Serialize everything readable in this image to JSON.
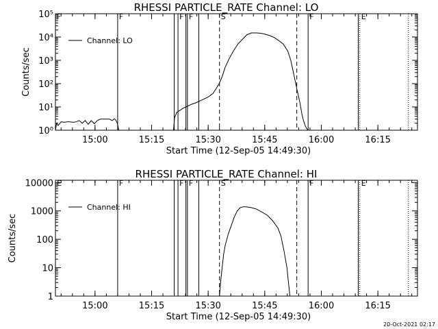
{
  "chart_data": [
    {
      "type": "line",
      "title": "RHESSI PARTICLE_RATE Channel: LO",
      "xlabel": "Start Time (12-Sep-05 14:49:30)",
      "ylabel": "Counts/sec",
      "scale": "log",
      "ylim": [
        1,
        100000
      ],
      "xlim": [
        "14:49:30",
        "16:25:30"
      ],
      "y_ticks": [
        {
          "value": 1,
          "label": "10⁰"
        },
        {
          "value": 10,
          "label": "10¹"
        },
        {
          "value": 100,
          "label": "10²"
        },
        {
          "value": 1000,
          "label": "10³"
        },
        {
          "value": 10000,
          "label": "10⁴"
        },
        {
          "value": 100000,
          "label": "10⁵"
        }
      ],
      "x_ticks": [
        "15:00",
        "15:15",
        "15:30",
        "15:45",
        "16:00",
        "16:15"
      ],
      "legend": {
        "label": "Channel: LO",
        "placement": "top-left"
      },
      "series": [
        {
          "x": [
            "14:49:30",
            "14:49:48",
            "14:50:12",
            "14:51:00",
            "14:51:48",
            "14:52:36",
            "14:53:24",
            "14:54:12",
            "14:55:00",
            "14:55:48",
            "14:56:36",
            "14:57:24",
            "14:58:12",
            "14:59:00",
            "14:59:48",
            "15:00:36",
            "15:01:24",
            "15:02:12",
            "15:03:00",
            "15:03:48",
            "15:04:36",
            "15:05:06",
            "15:05:30",
            "15:05:54",
            "15:06:18",
            "15:20:48",
            "15:21:06",
            "15:21:42",
            "15:22:30",
            "15:23:18",
            "15:24:06",
            "15:24:54",
            "15:25:42",
            "15:26:30",
            "15:27:18",
            "15:28:06",
            "15:28:54",
            "15:29:42",
            "15:30:30",
            "15:31:18",
            "15:32:06",
            "15:32:54",
            "15:33:42",
            "15:34:30",
            "15:35:30",
            "15:36:42",
            "15:37:54",
            "15:39:06",
            "15:40:18",
            "15:41:30",
            "15:42:42",
            "15:43:54",
            "15:45:06",
            "15:46:18",
            "15:47:30",
            "15:48:42",
            "15:49:54",
            "15:51:06",
            "15:51:54",
            "15:52:42",
            "15:53:30",
            "15:54:18",
            "15:54:54",
            "15:55:18",
            "15:55:42",
            "15:56:06",
            "15:56:30"
          ],
          "y": [
            1.0,
            2.0,
            1.6,
            2.3,
            2.2,
            2.3,
            2.3,
            2.2,
            2.3,
            2.6,
            2.0,
            2.6,
            1.8,
            2.6,
            1.9,
            2.6,
            3.0,
            3.0,
            3.0,
            3.0,
            2.6,
            3.1,
            2.7,
            2.0,
            1.0,
            1.0,
            3.5,
            5.8,
            7.1,
            8.7,
            10.0,
            11.5,
            13.2,
            14.5,
            16.6,
            19.1,
            21.9,
            25.1,
            30.2,
            38.0,
            60.3,
            100,
            200,
            500,
            1120,
            2510,
            5010,
            7940,
            12600,
            15000,
            15000,
            14500,
            13200,
            11500,
            9550,
            7080,
            5010,
            2510,
            1000,
            250,
            60.3,
            15.8,
            4.5,
            2.5,
            1.6,
            1.2,
            1.0
          ]
        }
      ],
      "markers": [
        {
          "time": "14:49:30",
          "style": "dotted",
          "label": "F"
        },
        {
          "time": "15:06:00",
          "style": "solid",
          "label": "F"
        },
        {
          "time": "15:21:00",
          "style": "solid",
          "label": ""
        },
        {
          "time": "15:22:00",
          "style": "solid",
          "label": "F"
        },
        {
          "time": "15:24:06",
          "style": "solid",
          "label": ""
        },
        {
          "time": "15:24:30",
          "style": "solid",
          "label": "F"
        },
        {
          "time": "15:27:30",
          "style": "solid",
          "label": ""
        },
        {
          "time": "15:33:00",
          "style": "dashed",
          "label": "S"
        },
        {
          "time": "15:53:30",
          "style": "dashed",
          "label": ""
        },
        {
          "time": "15:56:30",
          "style": "solid",
          "label": "F"
        },
        {
          "time": "16:09:48",
          "style": "solid",
          "label": ""
        },
        {
          "time": "16:10:12",
          "style": "dotted",
          "label": "E"
        },
        {
          "time": "16:23:06",
          "style": "dotted",
          "label": ""
        }
      ]
    },
    {
      "type": "line",
      "title": "RHESSI PARTICLE_RATE Channel: HI",
      "xlabel": "Start Time (12-Sep-05 14:49:30)",
      "ylabel": "Counts/sec",
      "scale": "log",
      "ylim": [
        1,
        12000
      ],
      "xlim": [
        "14:49:30",
        "16:25:30"
      ],
      "y_ticks": [
        {
          "value": 1,
          "label": "1"
        },
        {
          "value": 10,
          "label": "10"
        },
        {
          "value": 100,
          "label": "100"
        },
        {
          "value": 1000,
          "label": "1000"
        },
        {
          "value": 10000,
          "label": "10000"
        }
      ],
      "x_ticks": [
        "15:00",
        "15:15",
        "15:30",
        "15:45",
        "16:00",
        "16:15"
      ],
      "legend": {
        "label": "Channel: HI",
        "placement": "top-left"
      },
      "series": [
        {
          "x": [
            "15:33:00",
            "15:33:18",
            "15:33:42",
            "15:34:06",
            "15:34:30",
            "15:35:18",
            "15:36:06",
            "15:36:54",
            "15:37:42",
            "15:38:30",
            "15:39:18",
            "15:40:06",
            "15:41:30",
            "15:42:54",
            "15:44:18",
            "15:45:42",
            "15:47:06",
            "15:48:30",
            "15:49:18",
            "15:50:06",
            "15:50:54",
            "15:51:18",
            "15:51:42"
          ],
          "y": [
            1.0,
            3.2,
            10,
            30,
            60,
            150,
            300,
            600,
            1000,
            1300,
            1400,
            1400,
            1300,
            1150,
            900,
            700,
            450,
            250,
            130,
            40,
            10,
            3,
            1.0
          ]
        }
      ],
      "markers": [
        {
          "time": "14:49:30",
          "style": "dotted",
          "label": "E"
        },
        {
          "time": "15:06:00",
          "style": "solid",
          "label": "F"
        },
        {
          "time": "15:21:00",
          "style": "solid",
          "label": ""
        },
        {
          "time": "15:22:00",
          "style": "solid",
          "label": "F"
        },
        {
          "time": "15:24:06",
          "style": "solid",
          "label": ""
        },
        {
          "time": "15:24:30",
          "style": "solid",
          "label": "F"
        },
        {
          "time": "15:27:30",
          "style": "solid",
          "label": ""
        },
        {
          "time": "15:33:00",
          "style": "dashed",
          "label": "S"
        },
        {
          "time": "15:53:30",
          "style": "dashed",
          "label": ""
        },
        {
          "time": "15:56:30",
          "style": "solid",
          "label": "F"
        },
        {
          "time": "16:09:48",
          "style": "solid",
          "label": ""
        },
        {
          "time": "16:10:12",
          "style": "dotted",
          "label": "E"
        },
        {
          "time": "16:23:06",
          "style": "dotted",
          "label": ""
        }
      ]
    }
  ],
  "footer": {
    "timestamp": "20-Oct-2021 02:17"
  }
}
